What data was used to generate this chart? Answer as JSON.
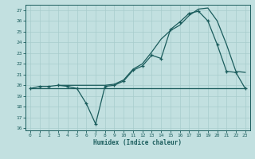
{
  "xlabel": "Humidex (Indice chaleur)",
  "bg_color": "#c2e0e0",
  "grid_color": "#a8cccc",
  "line_color": "#1a5c5c",
  "xlim": [
    -0.5,
    23.5
  ],
  "ylim": [
    15.8,
    27.5
  ],
  "yticks": [
    16,
    17,
    18,
    19,
    20,
    21,
    22,
    23,
    24,
    25,
    26,
    27
  ],
  "xticks": [
    0,
    1,
    2,
    3,
    4,
    5,
    6,
    7,
    8,
    9,
    10,
    11,
    12,
    13,
    14,
    15,
    16,
    17,
    18,
    19,
    20,
    21,
    22,
    23
  ],
  "flat_x": [
    0,
    1,
    2,
    3,
    4,
    5,
    6,
    7,
    8,
    9,
    10,
    11,
    12,
    13,
    14,
    15,
    16,
    17,
    18,
    19,
    20,
    21,
    22,
    23
  ],
  "flat_y": [
    19.7,
    19.7,
    19.7,
    19.7,
    19.7,
    19.7,
    19.7,
    19.7,
    19.7,
    19.7,
    19.7,
    19.7,
    19.7,
    19.7,
    19.7,
    19.7,
    19.7,
    19.7,
    19.7,
    19.7,
    19.7,
    19.7,
    19.7,
    19.7
  ],
  "wavy_x": [
    0,
    1,
    2,
    3,
    4,
    5,
    6,
    7,
    8,
    9,
    10,
    11,
    12,
    13,
    14,
    15,
    16,
    17,
    18,
    19,
    20,
    21,
    22,
    23
  ],
  "wavy_y": [
    19.7,
    19.9,
    19.9,
    20.0,
    19.9,
    19.7,
    18.3,
    16.4,
    19.9,
    20.0,
    20.4,
    21.4,
    21.8,
    22.8,
    22.5,
    25.2,
    25.9,
    26.7,
    26.9,
    26.0,
    23.8,
    21.3,
    21.2,
    19.7
  ],
  "diag_x": [
    3,
    8,
    9,
    10,
    11,
    12,
    13,
    14,
    15,
    16,
    17,
    18,
    19,
    20,
    21,
    22,
    23
  ],
  "diag_y": [
    20.0,
    20.0,
    20.1,
    20.5,
    21.5,
    22.0,
    23.1,
    24.3,
    25.1,
    25.6,
    26.5,
    27.1,
    27.2,
    26.0,
    23.8,
    21.3,
    21.2
  ]
}
